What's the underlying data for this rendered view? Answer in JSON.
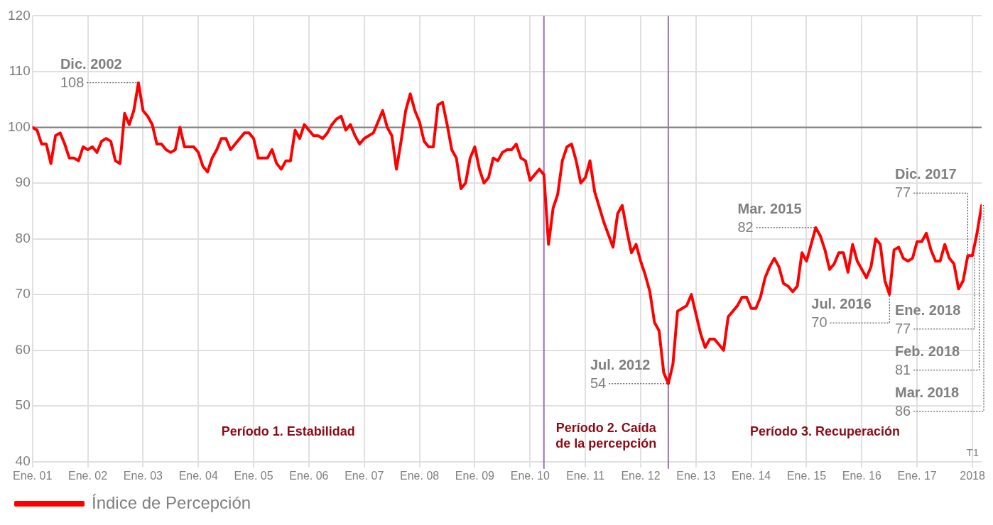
{
  "chart_data": {
    "type": "line",
    "x": [
      "2001-01",
      "2001-02",
      "2001-03",
      "2001-04",
      "2001-05",
      "2001-06",
      "2001-07",
      "2001-08",
      "2001-09",
      "2001-10",
      "2001-11",
      "2001-12",
      "2002-01",
      "2002-02",
      "2002-03",
      "2002-04",
      "2002-05",
      "2002-06",
      "2002-07",
      "2002-08",
      "2002-09",
      "2002-10",
      "2002-11",
      "2002-12",
      "2003-01",
      "2003-02",
      "2003-03",
      "2003-04",
      "2003-05",
      "2003-06",
      "2003-07",
      "2003-08",
      "2003-09",
      "2003-10",
      "2003-11",
      "2003-12",
      "2004-01",
      "2004-02",
      "2004-03",
      "2004-04",
      "2004-05",
      "2004-06",
      "2004-07",
      "2004-08",
      "2004-09",
      "2004-10",
      "2004-11",
      "2004-12",
      "2005-01",
      "2005-02",
      "2005-03",
      "2005-04",
      "2005-05",
      "2005-06",
      "2005-07",
      "2005-08",
      "2005-09",
      "2005-10",
      "2005-11",
      "2005-12",
      "2006-01",
      "2006-02",
      "2006-03",
      "2006-04",
      "2006-05",
      "2006-06",
      "2006-07",
      "2006-08",
      "2006-09",
      "2006-10",
      "2006-11",
      "2006-12",
      "2007-01",
      "2007-02",
      "2007-03",
      "2007-04",
      "2007-05",
      "2007-06",
      "2007-07",
      "2007-08",
      "2007-09",
      "2007-10",
      "2007-11",
      "2007-12",
      "2008-01",
      "2008-02",
      "2008-03",
      "2008-04",
      "2008-05",
      "2008-06",
      "2008-07",
      "2008-08",
      "2008-09",
      "2008-10",
      "2008-11",
      "2008-12",
      "2009-01",
      "2009-02",
      "2009-03",
      "2009-04",
      "2009-05",
      "2009-06",
      "2009-07",
      "2009-08",
      "2009-09",
      "2009-10",
      "2009-11",
      "2009-12",
      "2010-01",
      "2010-02",
      "2010-03",
      "2010-04",
      "2010-05",
      "2010-06",
      "2010-07",
      "2010-08",
      "2010-09",
      "2010-10",
      "2010-11",
      "2010-12",
      "2011-01",
      "2011-02",
      "2011-03",
      "2011-05",
      "2011-07",
      "2011-08",
      "2011-09",
      "2011-10",
      "2011-11",
      "2011-12",
      "2012-01",
      "2012-02",
      "2012-03",
      "2012-04",
      "2012-05",
      "2012-06",
      "2012-07",
      "2012-08",
      "2012-09",
      "2012-10",
      "2012-11",
      "2012-12",
      "2013-01",
      "2013-02",
      "2013-03",
      "2013-04",
      "2013-05",
      "2013-06",
      "2013-07",
      "2013-08",
      "2013-09",
      "2013-10",
      "2013-11",
      "2013-12",
      "2014-01",
      "2014-02",
      "2014-03",
      "2014-04",
      "2014-05",
      "2014-06",
      "2014-07",
      "2014-08",
      "2014-09",
      "2014-10",
      "2014-11",
      "2014-12",
      "2015-01",
      "2015-02",
      "2015-03",
      "2015-04",
      "2015-05",
      "2015-06",
      "2015-07",
      "2015-08",
      "2015-09",
      "2015-10",
      "2015-11",
      "2015-12",
      "2016-01",
      "2016-02",
      "2016-03",
      "2016-04",
      "2016-05",
      "2016-06",
      "2016-07",
      "2016-08",
      "2016-09",
      "2016-10",
      "2016-11",
      "2016-12",
      "2017-01",
      "2017-02",
      "2017-03",
      "2017-04",
      "2017-05",
      "2017-06",
      "2017-07",
      "2017-08",
      "2017-09",
      "2017-10",
      "2017-11",
      "2017-12",
      "2018-01",
      "2018-02",
      "2018-03"
    ],
    "series": [
      {
        "name": "Índice de Percepción",
        "color": "#ff0000",
        "values": [
          100,
          99.5,
          97,
          97,
          93.5,
          98.5,
          99,
          97,
          94.5,
          94.5,
          94,
          96.5,
          96,
          96.5,
          95.5,
          97.5,
          98,
          97.5,
          94,
          93.5,
          102.5,
          100.5,
          103,
          108,
          103,
          102,
          100.5,
          97,
          97,
          96,
          95.5,
          96,
          100,
          96.5,
          96.5,
          96.5,
          95.5,
          93,
          92,
          94.5,
          96,
          98,
          98,
          96,
          97,
          98,
          99,
          99,
          98,
          94.5,
          94.5,
          94.5,
          96,
          93.5,
          92.5,
          94,
          94,
          99.5,
          98,
          100.5,
          99.5,
          98.5,
          98.5,
          98,
          99,
          100.5,
          101.5,
          102,
          99.5,
          100.5,
          98.5,
          97,
          98,
          98.5,
          99,
          101,
          103,
          100,
          98.5,
          92.5,
          97.5,
          103,
          106,
          103,
          101,
          97.5,
          96.5,
          96.5,
          104,
          104.5,
          100.5,
          96,
          94.5,
          89,
          90,
          94.5,
          96.5,
          92.5,
          90,
          91,
          94.5,
          94,
          95.5,
          96,
          96,
          97,
          94.5,
          94,
          90.5,
          91.5,
          92.5,
          91.5,
          79,
          85.5,
          88,
          94,
          96.5,
          97,
          94,
          90,
          91,
          94,
          88.5,
          83,
          78.5,
          84.5,
          86,
          81.5,
          77.5,
          79,
          76,
          73.5,
          70.5,
          65,
          63.5,
          56,
          54,
          57.5,
          67,
          67.5,
          68,
          70,
          66.5,
          63,
          60.5,
          62,
          62,
          61,
          60,
          66,
          67,
          68,
          69.5,
          69.5,
          67.5,
          67.5,
          69.5,
          73,
          75,
          76.5,
          75,
          72,
          71.5,
          70.5,
          71.5,
          77.5,
          76,
          79,
          82,
          80.5,
          78,
          74.5,
          75.5,
          77.5,
          77.5,
          74,
          79,
          76,
          74.5,
          73,
          75,
          80,
          79,
          72.5,
          70,
          78,
          78.5,
          76.5,
          76,
          76.5,
          79.5,
          79.5,
          81,
          78,
          76,
          76,
          79,
          76.5,
          75.5,
          71,
          72.5,
          77,
          77,
          81,
          86
        ]
      }
    ],
    "xlim": [
      "2001-01",
      "2018-03"
    ],
    "xticks": [
      {
        "value": "2001-01",
        "label": "Ene. 01"
      },
      {
        "value": "2002-01",
        "label": "Ene. 02"
      },
      {
        "value": "2003-01",
        "label": "Ene. 03"
      },
      {
        "value": "2004-01",
        "label": "Ene. 04"
      },
      {
        "value": "2005-01",
        "label": "Ene. 05"
      },
      {
        "value": "2006-01",
        "label": "Ene. 06"
      },
      {
        "value": "2007-01",
        "label": "Ene. 07"
      },
      {
        "value": "2008-01",
        "label": "Ene. 08"
      },
      {
        "value": "2009-01",
        "label": "Ene. 09"
      },
      {
        "value": "2010-01",
        "label": "Ene. 10"
      },
      {
        "value": "2011-01",
        "label": "Ene. 11"
      },
      {
        "value": "2012-01",
        "label": "Ene. 12"
      },
      {
        "value": "2013-01",
        "label": "Ene. 13"
      },
      {
        "value": "2014-01",
        "label": "Ene. 14"
      },
      {
        "value": "2015-01",
        "label": "Ene. 15"
      },
      {
        "value": "2016-01",
        "label": "Ene. 16"
      },
      {
        "value": "2017-01",
        "label": "Ene. 17"
      },
      {
        "value": "2018-01",
        "label": "2018"
      }
    ],
    "ylim": [
      40,
      120
    ],
    "yticks": [
      40,
      50,
      60,
      70,
      80,
      90,
      100,
      110,
      120
    ],
    "grid": true,
    "legend": "bottom left",
    "marker": "none",
    "line_style": "solid",
    "ref_lines": [
      {
        "axis": "y",
        "value": 100,
        "color": "#808080"
      },
      {
        "axis": "x",
        "value": "2010-04",
        "color": "#a070b0"
      },
      {
        "axis": "x",
        "value": "2012-07",
        "color": "#a070b0"
      }
    ],
    "annotations": [
      "Período 1. Estabilidad",
      "Período 2. Caída\nde la percepción",
      "Período 3. Recuperación",
      {
        "text": "Dic. 2002\n108",
        "x": "2002-12",
        "y": 108
      },
      {
        "text": "Jul. 2012\n54",
        "x": "2012-07",
        "y": 54
      },
      {
        "text": "Mar. 2015\n82",
        "x": "2015-03",
        "y": 82
      },
      {
        "text": "Jul. 2016\n70",
        "x": "2016-07",
        "y": 70
      },
      {
        "text": "Dic. 2017\n77",
        "x": "2017-12",
        "y": 77
      },
      {
        "text": "Ene. 2018\n77",
        "x": "2018-01",
        "y": 77
      },
      {
        "text": "Feb. 2018\n81",
        "x": "2018-02",
        "y": 81
      },
      {
        "text": "Mar. 2018\n86",
        "x": "2018-03",
        "y": 86
      },
      "T1"
    ]
  }
}
